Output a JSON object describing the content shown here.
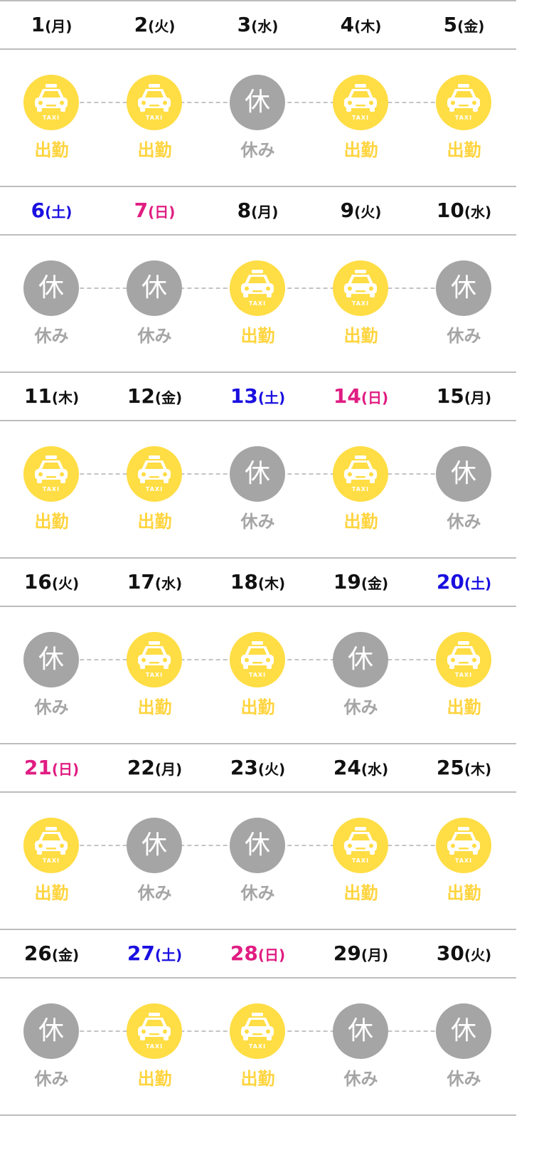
{
  "colors": {
    "work": "#ffdd44",
    "work_text": "#ffd43e",
    "off": "#a5a5a5",
    "saturday": "#1a0fe0",
    "sunday": "#e01d82",
    "weekday": "#111111",
    "rule": "#bdbdbd"
  },
  "legend": {
    "work_label": "出勤",
    "off_label": "休み",
    "off_icon_char": "休",
    "taxi_text": "TAXI",
    "work_icon": "taxi-icon",
    "off_icon": "rest-icon"
  },
  "weeks": [
    {
      "days": [
        {
          "num": "1",
          "weekday": "(月)",
          "type": "weekday",
          "status": "work"
        },
        {
          "num": "2",
          "weekday": "(火)",
          "type": "weekday",
          "status": "work"
        },
        {
          "num": "3",
          "weekday": "(水)",
          "type": "weekday",
          "status": "off"
        },
        {
          "num": "4",
          "weekday": "(木)",
          "type": "weekday",
          "status": "work"
        },
        {
          "num": "5",
          "weekday": "(金)",
          "type": "weekday",
          "status": "work"
        }
      ]
    },
    {
      "days": [
        {
          "num": "6",
          "weekday": "(土)",
          "type": "sat",
          "status": "off"
        },
        {
          "num": "7",
          "weekday": "(日)",
          "type": "sun",
          "status": "off"
        },
        {
          "num": "8",
          "weekday": "(月)",
          "type": "weekday",
          "status": "work"
        },
        {
          "num": "9",
          "weekday": "(火)",
          "type": "weekday",
          "status": "work"
        },
        {
          "num": "10",
          "weekday": "(水)",
          "type": "weekday",
          "status": "off"
        }
      ]
    },
    {
      "days": [
        {
          "num": "11",
          "weekday": "(木)",
          "type": "weekday",
          "status": "work"
        },
        {
          "num": "12",
          "weekday": "(金)",
          "type": "weekday",
          "status": "work"
        },
        {
          "num": "13",
          "weekday": "(土)",
          "type": "sat",
          "status": "off"
        },
        {
          "num": "14",
          "weekday": "(日)",
          "type": "sun",
          "status": "work"
        },
        {
          "num": "15",
          "weekday": "(月)",
          "type": "weekday",
          "status": "off"
        }
      ]
    },
    {
      "days": [
        {
          "num": "16",
          "weekday": "(火)",
          "type": "weekday",
          "status": "off"
        },
        {
          "num": "17",
          "weekday": "(水)",
          "type": "weekday",
          "status": "work"
        },
        {
          "num": "18",
          "weekday": "(木)",
          "type": "weekday",
          "status": "work"
        },
        {
          "num": "19",
          "weekday": "(金)",
          "type": "weekday",
          "status": "off"
        },
        {
          "num": "20",
          "weekday": "(土)",
          "type": "sat",
          "status": "work"
        }
      ]
    },
    {
      "days": [
        {
          "num": "21",
          "weekday": "(日)",
          "type": "sun",
          "status": "work"
        },
        {
          "num": "22",
          "weekday": "(月)",
          "type": "weekday",
          "status": "off"
        },
        {
          "num": "23",
          "weekday": "(火)",
          "type": "weekday",
          "status": "off"
        },
        {
          "num": "24",
          "weekday": "(水)",
          "type": "weekday",
          "status": "work"
        },
        {
          "num": "25",
          "weekday": "(木)",
          "type": "weekday",
          "status": "work"
        }
      ]
    },
    {
      "days": [
        {
          "num": "26",
          "weekday": "(金)",
          "type": "weekday",
          "status": "off"
        },
        {
          "num": "27",
          "weekday": "(土)",
          "type": "sat",
          "status": "work"
        },
        {
          "num": "28",
          "weekday": "(日)",
          "type": "sun",
          "status": "work"
        },
        {
          "num": "29",
          "weekday": "(月)",
          "type": "weekday",
          "status": "off"
        },
        {
          "num": "30",
          "weekday": "(火)",
          "type": "weekday",
          "status": "off"
        }
      ]
    }
  ]
}
